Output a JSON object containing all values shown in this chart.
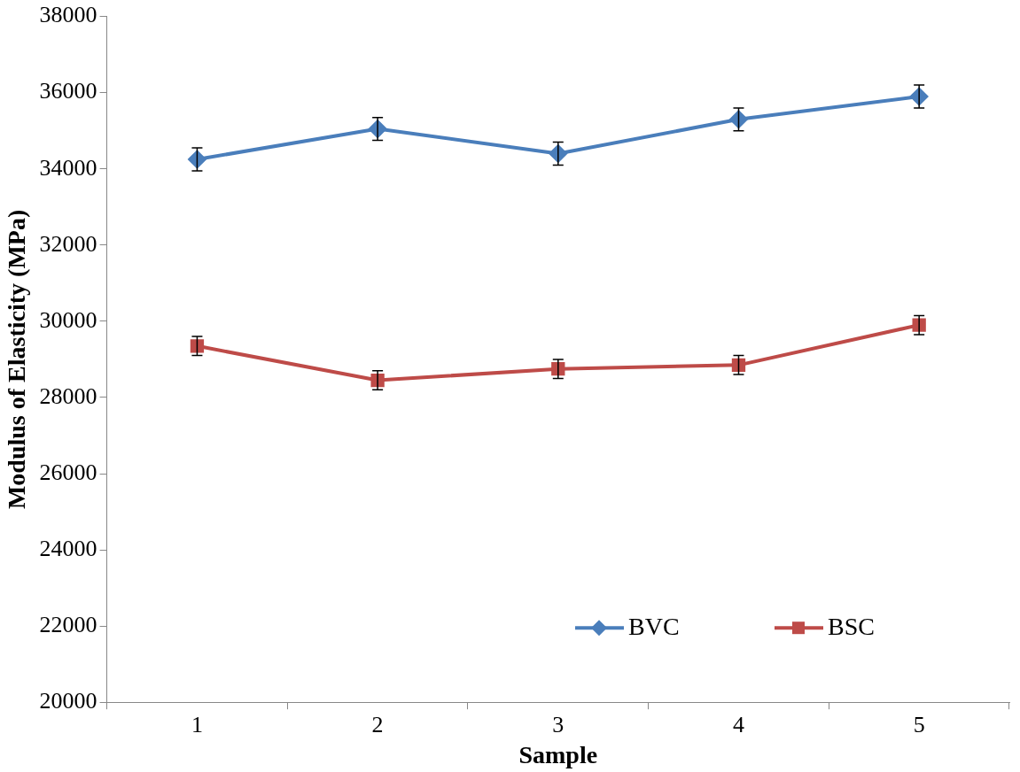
{
  "chart_data": {
    "type": "line",
    "xlabel": "Sample",
    "ylabel": "Modulus of Elasticity (MPa)",
    "categories": [
      "1",
      "2",
      "3",
      "4",
      "5"
    ],
    "series": [
      {
        "name": "BVC",
        "color": "#4a7ebb",
        "marker": "diamond",
        "values": [
          34250,
          35050,
          34400,
          35300,
          35900
        ],
        "errors": [
          300,
          300,
          300,
          300,
          300
        ]
      },
      {
        "name": "BSC",
        "color": "#be4b48",
        "marker": "square",
        "values": [
          29350,
          28450,
          28750,
          28850,
          29900
        ],
        "errors": [
          250,
          250,
          250,
          250,
          250
        ]
      }
    ],
    "ylim": [
      20000,
      38000
    ],
    "yticks": [
      20000,
      22000,
      24000,
      26000,
      28000,
      30000,
      32000,
      34000,
      36000,
      38000
    ],
    "grid": false,
    "legend": "bottom right",
    "line_style": "solid"
  }
}
